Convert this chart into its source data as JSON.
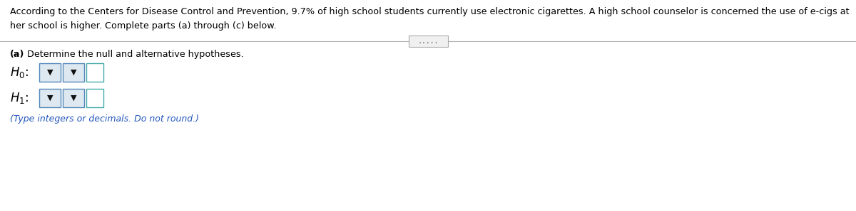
{
  "main_text_line1": "According to the Centers for Disease Control and Prevention, 9.7% of high school students currently use electronic cigarettes. A high school counselor is concerned the use of e-cigs at",
  "main_text_line2": "her school is higher. Complete parts (a) through (c) below.",
  "divider_dots": ".....",
  "part_a_label": "(a)",
  "part_a_text": " Determine the null and alternative hypotheses.",
  "note_text": "(Type integers or decimals. Do not round.)",
  "bg_color": "#ffffff",
  "text_color": "#000000",
  "blue_text_color": "#2255bb",
  "divider_color": "#b0b0b0",
  "dropdown_border_color": "#5588bb",
  "dropdown_fill_color": "#dde8f0",
  "input_border_color": "#44aaaa",
  "input_fill_color": "#ffffff",
  "dots_border_color": "#aaaaaa",
  "dots_fill_color": "#f0f0f0",
  "font_size_main": 9.2,
  "font_size_part": 9.2,
  "font_size_note": 9.0,
  "font_size_H": 12.0
}
